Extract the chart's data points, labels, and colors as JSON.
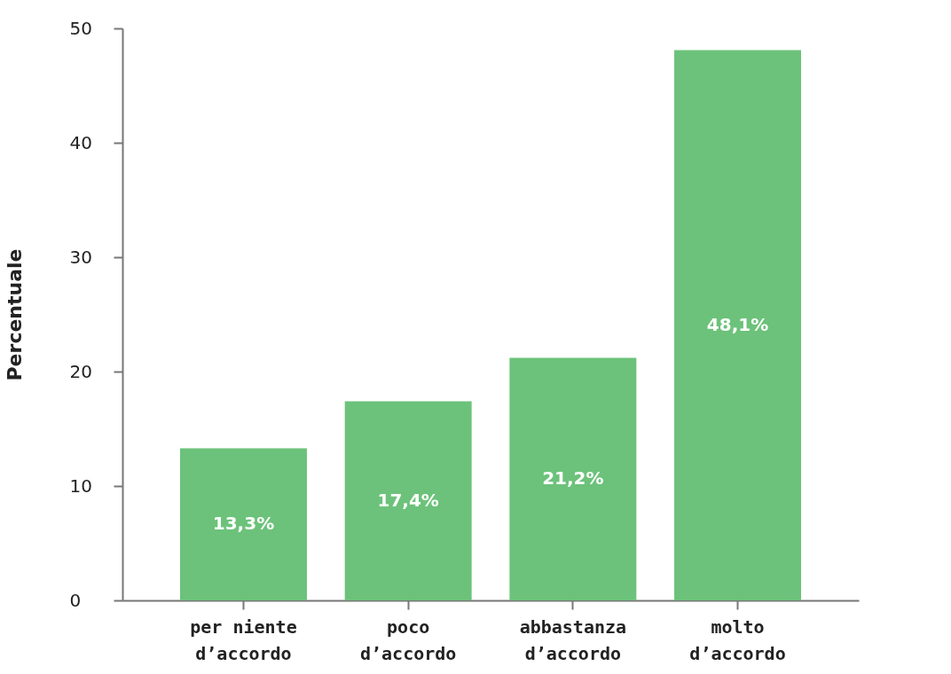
{
  "chart_data": {
    "type": "bar",
    "ylabel": "Percentuale",
    "categories": [
      "per niente d’accordo",
      "poco d’accordo",
      "abbastanza d’accordo",
      "molto d’accordo"
    ],
    "values": [
      13.3,
      17.4,
      21.2,
      48.1
    ],
    "value_labels": [
      "13,3%",
      "17,4%",
      "21,2%",
      "48,1%"
    ],
    "color": "#6cc27a",
    "ylim": [
      0,
      50
    ],
    "yticks": [
      0,
      10,
      20,
      30,
      40,
      50
    ],
    "grid": false
  }
}
